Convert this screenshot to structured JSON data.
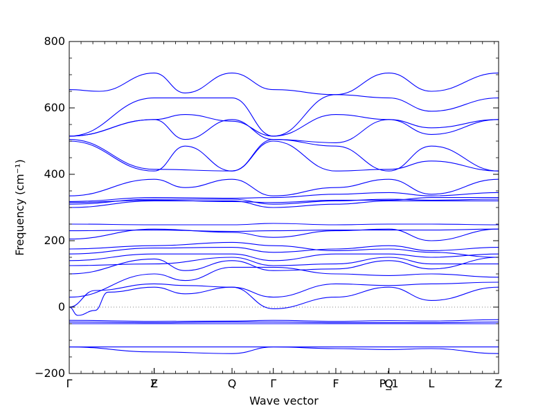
{
  "chart_data": {
    "type": "line",
    "title": "",
    "xlabel": "Wave vector",
    "ylabel": "Frequency (cm⁻¹)",
    "ylim": [
      -200,
      800
    ],
    "xlim": [
      0,
      1
    ],
    "yticks": [
      -200,
      0,
      200,
      400,
      600,
      800
    ],
    "grid": false,
    "legend": "none",
    "line_color": "#0000ff",
    "zero_line": {
      "y": 0,
      "style": "dotted",
      "color": "#808080"
    },
    "high_symmetry_points": [
      {
        "label": "Γ",
        "x": 0.0
      },
      {
        "label": "Z",
        "x": 0.1978
      },
      {
        "label": "F",
        "x": 0.1978
      },
      {
        "label": "Q",
        "x": 0.3791
      },
      {
        "label": "Γ",
        "x": 0.4753
      },
      {
        "label": "F",
        "x": 0.6209
      },
      {
        "label": "P_1",
        "x": 0.7445
      },
      {
        "label": "Q",
        "x": 0.7445
      },
      {
        "label": "L",
        "x": 0.8434
      },
      {
        "label": "Z",
        "x": 1.0
      }
    ],
    "series": [
      {
        "values": [
          [
            0,
            -120
          ],
          [
            0.1978,
            -120
          ],
          [
            0.3791,
            -120
          ],
          [
            0.4753,
            -120
          ],
          [
            0.6209,
            -120
          ],
          [
            0.7445,
            -120
          ],
          [
            0.8434,
            -120
          ],
          [
            1.0,
            -120
          ]
        ]
      },
      {
        "values": [
          [
            0,
            -120
          ],
          [
            0.1978,
            -135
          ],
          [
            0.3791,
            -140
          ],
          [
            0.4753,
            -120
          ],
          [
            0.6209,
            -125
          ],
          [
            0.7445,
            -128
          ],
          [
            0.8434,
            -125
          ],
          [
            1.0,
            -140
          ]
        ]
      },
      {
        "values": [
          [
            0,
            -45
          ],
          [
            0.1978,
            -47
          ],
          [
            0.3791,
            -45
          ],
          [
            0.4753,
            -45
          ],
          [
            0.6209,
            -47
          ],
          [
            0.7445,
            -47
          ],
          [
            0.8434,
            -47
          ],
          [
            1.0,
            -45
          ]
        ]
      },
      {
        "values": [
          [
            0,
            -50
          ],
          [
            0.1978,
            -50
          ],
          [
            0.3791,
            -50
          ],
          [
            0.4753,
            -50
          ],
          [
            0.6209,
            -50
          ],
          [
            0.7445,
            -50
          ],
          [
            0.8434,
            -50
          ],
          [
            1.0,
            -50
          ]
        ]
      },
      {
        "values": [
          [
            0,
            -40
          ],
          [
            0.1978,
            -43
          ],
          [
            0.3791,
            -42
          ],
          [
            0.4753,
            -40
          ],
          [
            0.6209,
            -43
          ],
          [
            0.7445,
            -41
          ],
          [
            0.8434,
            -42
          ],
          [
            1.0,
            -38
          ]
        ]
      },
      {
        "values": [
          [
            0,
            0
          ],
          [
            0.02,
            -25
          ],
          [
            0.06,
            -10
          ],
          [
            0.09,
            45
          ],
          [
            0.1978,
            60
          ],
          [
            0.27,
            40
          ],
          [
            0.3791,
            60
          ],
          [
            0.4753,
            -5
          ],
          [
            0.6209,
            30
          ],
          [
            0.7445,
            60
          ],
          [
            0.8434,
            20
          ],
          [
            1.0,
            60
          ]
        ]
      },
      {
        "values": [
          [
            0,
            0
          ],
          [
            0.06,
            50
          ],
          [
            0.1978,
            70
          ],
          [
            0.27,
            65
          ],
          [
            0.3791,
            60
          ],
          [
            0.4753,
            30
          ],
          [
            0.6209,
            70
          ],
          [
            0.7445,
            65
          ],
          [
            0.8434,
            70
          ],
          [
            1.0,
            75
          ]
        ]
      },
      {
        "values": [
          [
            0,
            30
          ],
          [
            0.1978,
            100
          ],
          [
            0.27,
            80
          ],
          [
            0.3791,
            120
          ],
          [
            0.4753,
            120
          ],
          [
            0.6209,
            100
          ],
          [
            0.7445,
            95
          ],
          [
            0.8434,
            100
          ],
          [
            1.0,
            90
          ]
        ]
      },
      {
        "values": [
          [
            0,
            100
          ],
          [
            0.1978,
            145
          ],
          [
            0.27,
            110
          ],
          [
            0.3791,
            140
          ],
          [
            0.4753,
            110
          ],
          [
            0.6209,
            115
          ],
          [
            0.7445,
            140
          ],
          [
            0.8434,
            115
          ],
          [
            1.0,
            150
          ]
        ]
      },
      {
        "values": [
          [
            0,
            125
          ],
          [
            0.1978,
            130
          ],
          [
            0.3791,
            150
          ],
          [
            0.4753,
            125
          ],
          [
            0.6209,
            130
          ],
          [
            0.7445,
            150
          ],
          [
            0.8434,
            130
          ],
          [
            1.0,
            130
          ]
        ]
      },
      {
        "values": [
          [
            0,
            140
          ],
          [
            0.1978,
            160
          ],
          [
            0.3791,
            160
          ],
          [
            0.4753,
            140
          ],
          [
            0.6209,
            160
          ],
          [
            0.7445,
            160
          ],
          [
            0.8434,
            150
          ],
          [
            1.0,
            160
          ]
        ]
      },
      {
        "values": [
          [
            0,
            160
          ],
          [
            0.1978,
            178
          ],
          [
            0.3791,
            180
          ],
          [
            0.4753,
            165
          ],
          [
            0.6209,
            175
          ],
          [
            0.7445,
            185
          ],
          [
            0.8434,
            170
          ],
          [
            1.0,
            180
          ]
        ]
      },
      {
        "values": [
          [
            0,
            175
          ],
          [
            0.1978,
            185
          ],
          [
            0.3791,
            195
          ],
          [
            0.4753,
            185
          ],
          [
            0.6209,
            170
          ],
          [
            0.7445,
            175
          ],
          [
            0.8434,
            165
          ],
          [
            1.0,
            150
          ]
        ]
      },
      {
        "values": [
          [
            0,
            205
          ],
          [
            0.1978,
            235
          ],
          [
            0.3791,
            225
          ],
          [
            0.4753,
            210
          ],
          [
            0.6209,
            230
          ],
          [
            0.7445,
            235
          ],
          [
            0.8434,
            200
          ],
          [
            1.0,
            235
          ]
        ]
      },
      {
        "values": [
          [
            0,
            230
          ],
          [
            0.1978,
            232
          ],
          [
            0.3791,
            228
          ],
          [
            0.4753,
            230
          ],
          [
            0.6209,
            232
          ],
          [
            0.7445,
            232
          ],
          [
            0.8434,
            232
          ],
          [
            1.0,
            235
          ]
        ]
      },
      {
        "values": [
          [
            0,
            250
          ],
          [
            0.1978,
            248
          ],
          [
            0.3791,
            248
          ],
          [
            0.4753,
            252
          ],
          [
            0.6209,
            248
          ],
          [
            0.7445,
            250
          ],
          [
            0.8434,
            250
          ],
          [
            1.0,
            248
          ]
        ]
      },
      {
        "values": [
          [
            0,
            300
          ],
          [
            0.1978,
            320
          ],
          [
            0.3791,
            320
          ],
          [
            0.4753,
            300
          ],
          [
            0.6209,
            310
          ],
          [
            0.7445,
            320
          ],
          [
            0.8434,
            320
          ],
          [
            1.0,
            320
          ]
        ]
      },
      {
        "values": [
          [
            0,
            310
          ],
          [
            0.1978,
            325
          ],
          [
            0.3791,
            325
          ],
          [
            0.4753,
            310
          ],
          [
            0.6209,
            320
          ],
          [
            0.7445,
            325
          ],
          [
            0.8434,
            322
          ],
          [
            1.0,
            325
          ]
        ]
      },
      {
        "values": [
          [
            0,
            315
          ],
          [
            0.1978,
            322
          ],
          [
            0.3791,
            318
          ],
          [
            0.4753,
            315
          ],
          [
            0.6209,
            322
          ],
          [
            0.7445,
            322
          ],
          [
            0.8434,
            330
          ],
          [
            1.0,
            330
          ]
        ]
      },
      {
        "values": [
          [
            0,
            318
          ],
          [
            0.1978,
            330
          ],
          [
            0.3791,
            328
          ],
          [
            0.4753,
            330
          ],
          [
            0.6209,
            340
          ],
          [
            0.7445,
            345
          ],
          [
            0.8434,
            335
          ],
          [
            1.0,
            345
          ]
        ]
      },
      {
        "values": [
          [
            0,
            335
          ],
          [
            0.1978,
            385
          ],
          [
            0.27,
            360
          ],
          [
            0.3791,
            385
          ],
          [
            0.4753,
            335
          ],
          [
            0.6209,
            360
          ],
          [
            0.7445,
            385
          ],
          [
            0.8434,
            340
          ],
          [
            1.0,
            385
          ]
        ]
      },
      {
        "values": [
          [
            0,
            500
          ],
          [
            0.1978,
            410
          ],
          [
            0.27,
            485
          ],
          [
            0.3791,
            410
          ],
          [
            0.4753,
            500
          ],
          [
            0.6209,
            410
          ],
          [
            0.7445,
            415
          ],
          [
            0.8434,
            440
          ],
          [
            1.0,
            410
          ]
        ]
      },
      {
        "values": [
          [
            0,
            505
          ],
          [
            0.1978,
            415
          ],
          [
            0.3791,
            410
          ],
          [
            0.4753,
            505
          ],
          [
            0.6209,
            485
          ],
          [
            0.7445,
            410
          ],
          [
            0.8434,
            485
          ],
          [
            1.0,
            410
          ]
        ]
      },
      {
        "values": [
          [
            0,
            515
          ],
          [
            0.1978,
            565
          ],
          [
            0.27,
            505
          ],
          [
            0.3791,
            565
          ],
          [
            0.4753,
            505
          ],
          [
            0.6209,
            495
          ],
          [
            0.7445,
            565
          ],
          [
            0.8434,
            520
          ],
          [
            1.0,
            565
          ]
        ]
      },
      {
        "values": [
          [
            0,
            515
          ],
          [
            0.1978,
            565
          ],
          [
            0.27,
            580
          ],
          [
            0.3791,
            560
          ],
          [
            0.4753,
            515
          ],
          [
            0.6209,
            580
          ],
          [
            0.7445,
            565
          ],
          [
            0.8434,
            540
          ],
          [
            1.0,
            565
          ]
        ]
      },
      {
        "values": [
          [
            0,
            515
          ],
          [
            0.1978,
            630
          ],
          [
            0.3791,
            630
          ],
          [
            0.4753,
            515
          ],
          [
            0.6209,
            640
          ],
          [
            0.7445,
            630
          ],
          [
            0.8434,
            590
          ],
          [
            1.0,
            630
          ]
        ]
      },
      {
        "values": [
          [
            0,
            655
          ],
          [
            0.07,
            650
          ],
          [
            0.1978,
            705
          ],
          [
            0.27,
            645
          ],
          [
            0.3791,
            705
          ],
          [
            0.4753,
            655
          ],
          [
            0.6209,
            640
          ],
          [
            0.7445,
            705
          ],
          [
            0.8434,
            650
          ],
          [
            1.0,
            705
          ]
        ]
      }
    ]
  }
}
